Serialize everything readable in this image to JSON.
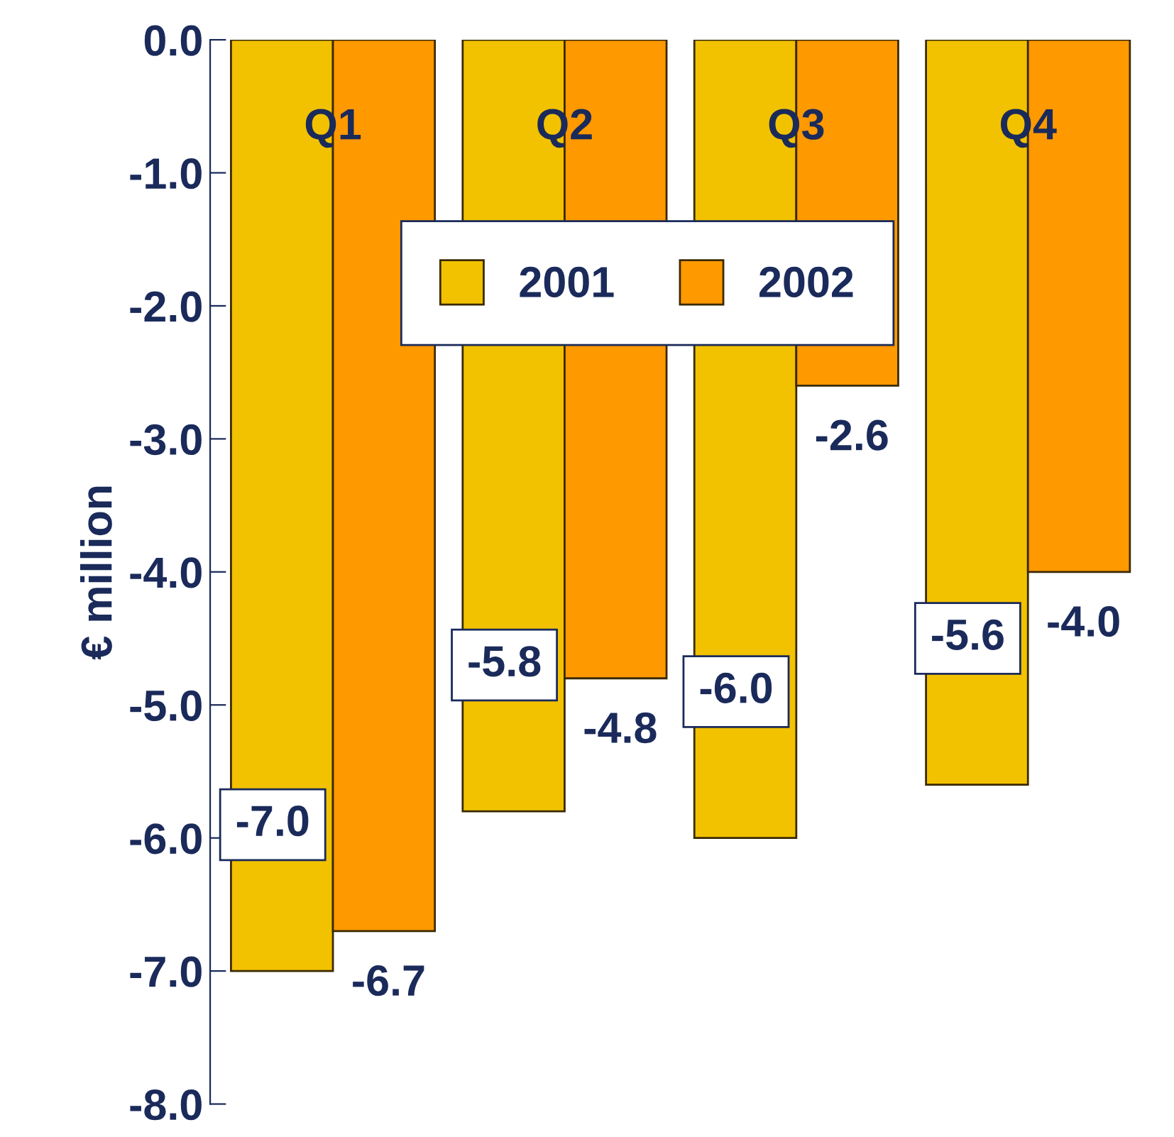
{
  "chart_data": {
    "type": "bar",
    "ylabel": "€ million",
    "categories": [
      "Q1",
      "Q2",
      "Q3",
      "Q4"
    ],
    "series": [
      {
        "name": "2001",
        "color": "#f2c200",
        "values": [
          -7.0,
          -5.8,
          -6.0,
          -5.6
        ],
        "value_labels": [
          "-7.0",
          "-5.8",
          "-6.0",
          "-5.6"
        ]
      },
      {
        "name": "2002",
        "color": "#ff9900",
        "values": [
          -6.7,
          -4.8,
          -2.6,
          -4.0
        ],
        "value_labels": [
          "-6.7",
          "-4.8",
          "-2.6",
          "-4.0"
        ]
      }
    ],
    "ylim": [
      -8,
      0
    ],
    "yticks": [
      {
        "value": 0,
        "label": "0.0"
      },
      {
        "value": -1,
        "label": "-1.0"
      },
      {
        "value": -2,
        "label": "-2.0"
      },
      {
        "value": -3,
        "label": "-3.0"
      },
      {
        "value": -4,
        "label": "-4.0"
      },
      {
        "value": -5,
        "label": "-5.0"
      },
      {
        "value": -6,
        "label": "-6.0"
      },
      {
        "value": -7,
        "label": "-7.0"
      },
      {
        "value": -8,
        "label": "-8.0"
      }
    ],
    "grid": false,
    "legend": "top"
  }
}
